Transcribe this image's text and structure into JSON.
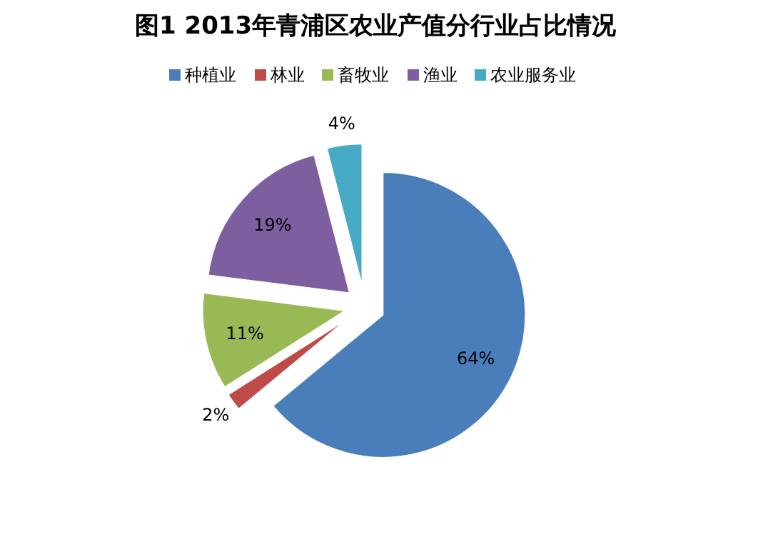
{
  "chart_data": {
    "type": "pie",
    "title": "图1  2013年青浦区农业产值分行业占比情况",
    "categories": [
      "种植业",
      "林业",
      "畜牧业",
      "渔业",
      "农业服务业"
    ],
    "values": [
      64,
      2,
      11,
      19,
      4
    ],
    "colors": [
      "#4a7ebb",
      "#be4b48",
      "#98b954",
      "#7d5fa0",
      "#46aac5"
    ],
    "value_labels": [
      "64%",
      "2%",
      "11%",
      "19%",
      "4%"
    ],
    "legend": "top"
  }
}
